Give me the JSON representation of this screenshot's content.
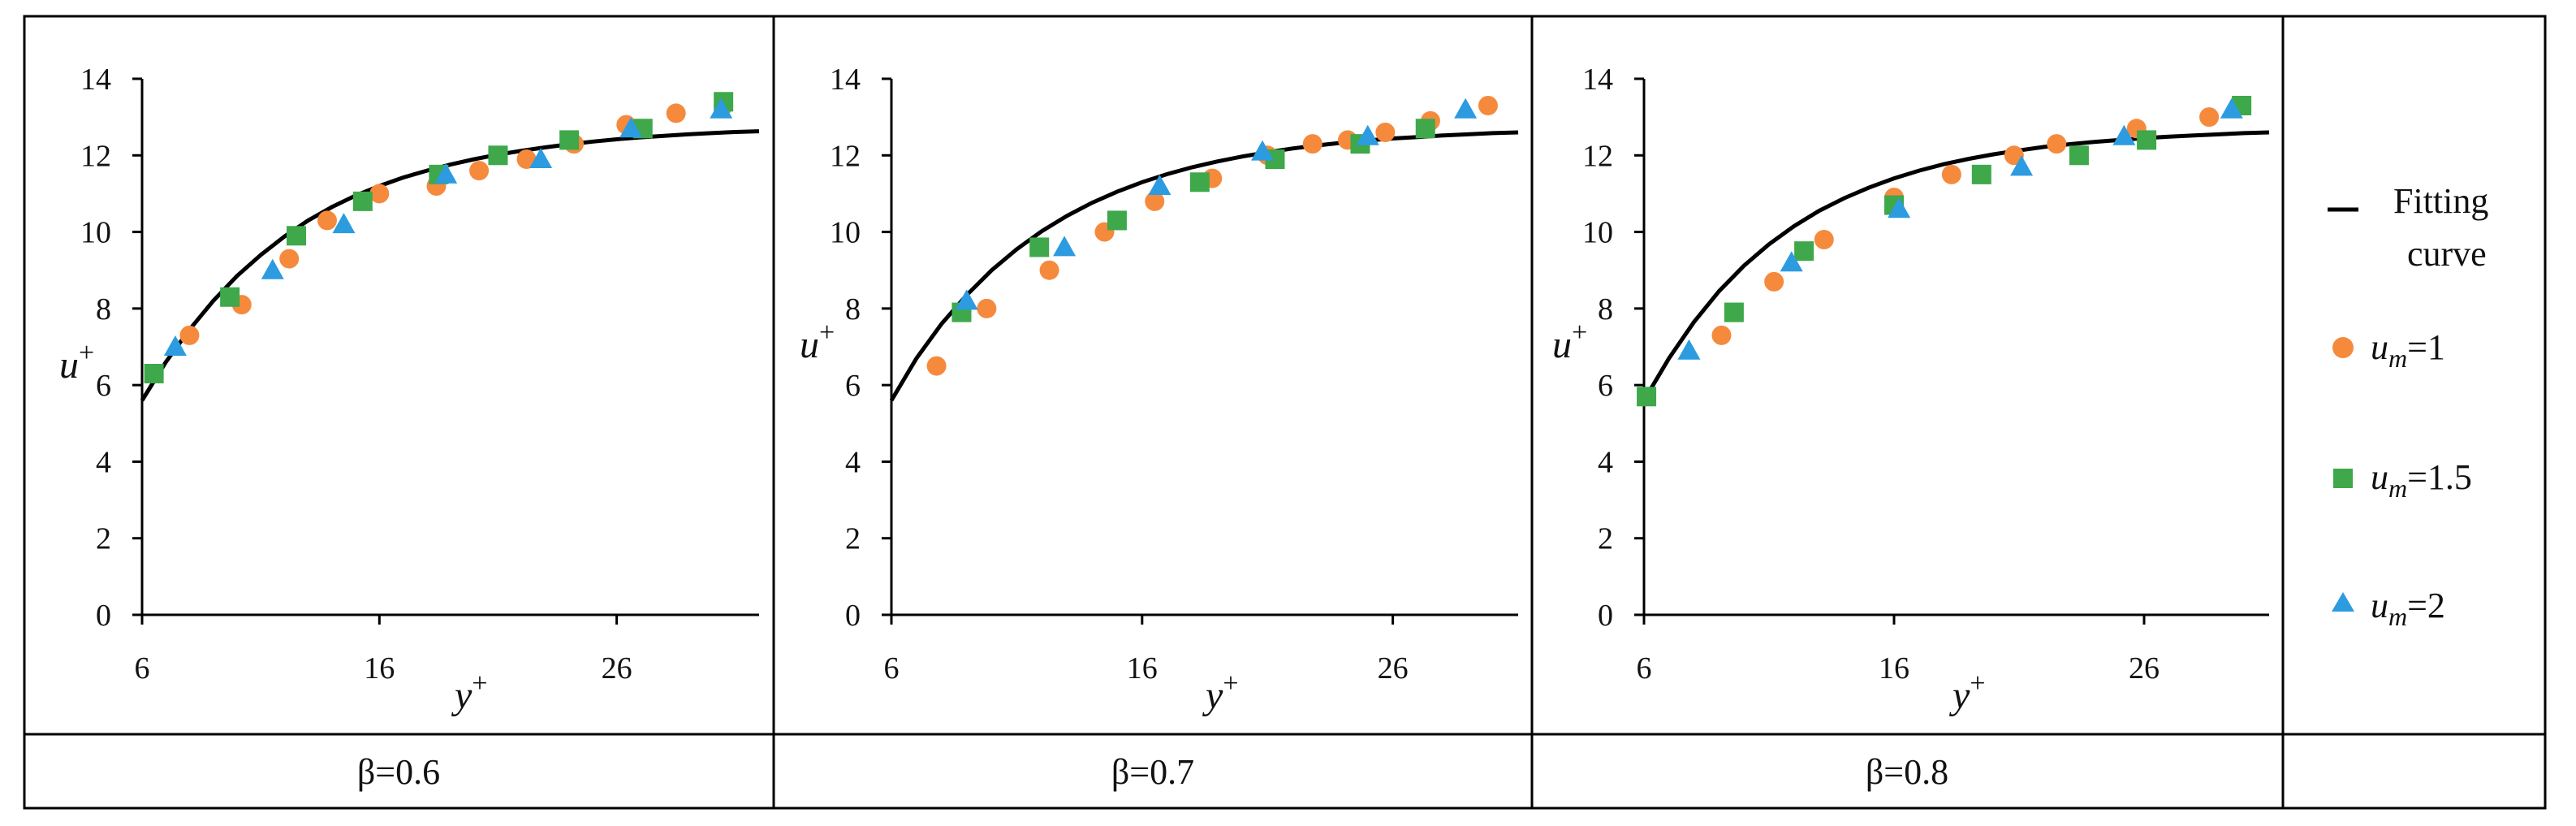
{
  "colors": {
    "fit": "#000000",
    "um1": "#f58a3d",
    "um15": "#3ea84a",
    "um2": "#2c9be0",
    "border": "#000000"
  },
  "legend": {
    "fit_line1": "Fitting",
    "fit_line2": "curve",
    "um1_label": "u_m=1",
    "um15_label": "u_m=1.5",
    "um2_label": "u_m=2",
    "um1_value": "=1",
    "um15_value": "=1.5",
    "um2_value": "=2"
  },
  "chart_data": [
    {
      "type": "scatter",
      "caption": "β=0.6",
      "xlabel": "y+",
      "ylabel": "u+",
      "xlim": [
        6,
        32
      ],
      "ylim": [
        0,
        14
      ],
      "xticks": [
        6,
        16,
        26
      ],
      "yticks": [
        0,
        2,
        4,
        6,
        8,
        10,
        12,
        14
      ],
      "fit": {
        "x": [
          6.0,
          7.0,
          8.0,
          9.0,
          10.0,
          11.0,
          12.0,
          13.0,
          14.0,
          15.0,
          16.0,
          17.0,
          18.0,
          19.0,
          20.0,
          21.0,
          22.0,
          23.0,
          24.0,
          25.0,
          26.0,
          27.0,
          28.0,
          29.0,
          30.0,
          31.0,
          32.0
        ],
        "y": [
          5.6,
          6.6,
          7.45,
          8.2,
          8.85,
          9.4,
          9.88,
          10.3,
          10.65,
          10.95,
          11.2,
          11.42,
          11.6,
          11.76,
          11.9,
          12.02,
          12.12,
          12.21,
          12.29,
          12.36,
          12.42,
          12.47,
          12.51,
          12.55,
          12.58,
          12.61,
          12.63
        ]
      },
      "series": [
        {
          "name": "u_m=1",
          "x": [
            8.0,
            10.2,
            12.2,
            13.8,
            16.0,
            18.4,
            20.2,
            22.2,
            24.2,
            26.4,
            28.5,
            30.5
          ],
          "y": [
            7.3,
            8.1,
            9.3,
            10.3,
            11.0,
            11.2,
            11.6,
            11.9,
            12.3,
            12.8,
            13.1,
            13.3
          ]
        },
        {
          "name": "u_m=1.5",
          "x": [
            6.5,
            9.7,
            12.5,
            15.3,
            18.5,
            21.0,
            24.0,
            27.1,
            30.5
          ],
          "y": [
            6.3,
            8.3,
            9.9,
            10.8,
            11.5,
            12.0,
            12.4,
            12.7,
            13.4
          ]
        },
        {
          "name": "u_m=2",
          "x": [
            7.4,
            11.5,
            14.5,
            18.8,
            22.8,
            26.6,
            30.4
          ],
          "y": [
            7.0,
            9.0,
            10.2,
            11.5,
            11.9,
            12.7,
            13.2
          ]
        }
      ]
    },
    {
      "type": "scatter",
      "caption": "β=0.7",
      "xlabel": "y+",
      "ylabel": "u+",
      "xlim": [
        6,
        31
      ],
      "ylim": [
        0,
        14
      ],
      "xticks": [
        6,
        16,
        26
      ],
      "yticks": [
        0,
        2,
        4,
        6,
        8,
        10,
        12,
        14
      ],
      "fit": {
        "x": [
          6.0,
          7.0,
          8.0,
          9.0,
          10.0,
          11.0,
          12.0,
          13.0,
          14.0,
          15.0,
          16.0,
          17.0,
          18.0,
          19.0,
          20.0,
          21.0,
          22.0,
          23.0,
          24.0,
          25.0,
          26.0,
          27.0,
          28.0,
          29.0,
          30.0,
          31.0
        ],
        "y": [
          5.6,
          6.7,
          7.6,
          8.35,
          9.0,
          9.55,
          10.02,
          10.42,
          10.76,
          11.05,
          11.3,
          11.51,
          11.69,
          11.84,
          11.97,
          12.08,
          12.18,
          12.26,
          12.33,
          12.39,
          12.44,
          12.48,
          12.52,
          12.55,
          12.58,
          12.6
        ]
      },
      "series": [
        {
          "name": "u_m=1",
          "x": [
            7.8,
            9.8,
            12.3,
            14.5,
            16.5,
            18.8,
            21.0,
            22.8,
            24.2,
            25.7,
            27.5,
            29.8
          ],
          "y": [
            6.5,
            8.0,
            9.0,
            10.0,
            10.8,
            11.4,
            12.0,
            12.3,
            12.4,
            12.6,
            12.9,
            13.3
          ]
        },
        {
          "name": "u_m=1.5",
          "x": [
            8.8,
            11.9,
            15.0,
            18.3,
            21.3,
            24.7,
            27.3
          ],
          "y": [
            7.9,
            9.6,
            10.3,
            11.3,
            11.9,
            12.3,
            12.7
          ]
        },
        {
          "name": "u_m=2",
          "x": [
            9.0,
            12.9,
            16.7,
            20.8,
            25.0,
            28.9
          ],
          "y": [
            8.2,
            9.6,
            11.2,
            12.1,
            12.5,
            13.2
          ]
        }
      ]
    },
    {
      "type": "scatter",
      "caption": "β=0.8",
      "xlabel": "y+",
      "ylabel": "u+",
      "xlim": [
        6,
        31
      ],
      "ylim": [
        0,
        14
      ],
      "xticks": [
        6,
        16,
        26
      ],
      "yticks": [
        0,
        2,
        4,
        6,
        8,
        10,
        12,
        14
      ],
      "fit": {
        "x": [
          6.0,
          7.0,
          8.0,
          9.0,
          10.0,
          11.0,
          12.0,
          13.0,
          14.0,
          15.0,
          16.0,
          17.0,
          18.0,
          19.0,
          20.0,
          21.0,
          22.0,
          23.0,
          24.0,
          25.0,
          26.0,
          27.0,
          28.0,
          29.0,
          30.0,
          31.0
        ],
        "y": [
          5.6,
          6.7,
          7.65,
          8.45,
          9.12,
          9.68,
          10.15,
          10.55,
          10.88,
          11.16,
          11.4,
          11.6,
          11.77,
          11.91,
          12.03,
          12.13,
          12.22,
          12.29,
          12.35,
          12.4,
          12.45,
          12.49,
          12.52,
          12.55,
          12.58,
          12.6
        ]
      },
      "series": [
        {
          "name": "u_m=1",
          "x": [
            9.1,
            11.2,
            13.2,
            16.0,
            18.3,
            20.8,
            22.5,
            25.7,
            28.6
          ],
          "y": [
            7.3,
            8.7,
            9.8,
            10.9,
            11.5,
            12.0,
            12.3,
            12.7,
            13.0
          ]
        },
        {
          "name": "u_m=1.5",
          "x": [
            6.1,
            9.6,
            12.4,
            16.0,
            19.5,
            23.4,
            26.1,
            29.9
          ],
          "y": [
            5.7,
            7.9,
            9.5,
            10.7,
            11.5,
            12.0,
            12.4,
            13.3
          ]
        },
        {
          "name": "u_m=2",
          "x": [
            7.8,
            11.9,
            16.2,
            21.1,
            25.2,
            29.5
          ],
          "y": [
            6.9,
            9.2,
            10.6,
            11.7,
            12.5,
            13.2
          ]
        }
      ]
    }
  ]
}
